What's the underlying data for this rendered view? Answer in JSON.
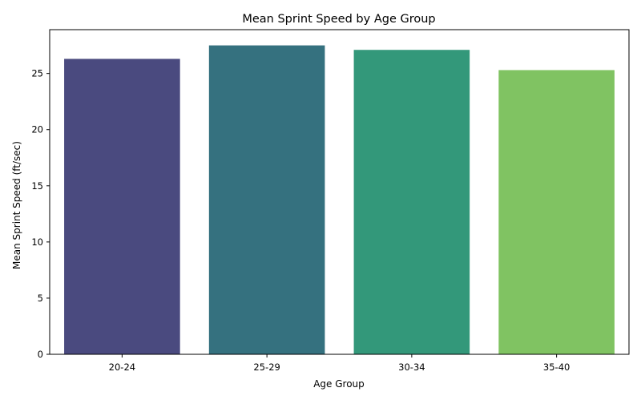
{
  "chart_data": {
    "type": "bar",
    "title": "Mean Sprint Speed by Age Group",
    "xlabel": "Age Group",
    "ylabel": "Mean Sprint Speed (ft/sec)",
    "categories": [
      "20-24",
      "25-29",
      "30-34",
      "35-40"
    ],
    "values": [
      26.3,
      27.5,
      27.1,
      25.3
    ],
    "colors": [
      "#4a4a7f",
      "#35717f",
      "#33987a",
      "#80c362"
    ],
    "ylim": [
      0,
      28.9
    ],
    "yticks": [
      0,
      5,
      10,
      15,
      20,
      25
    ],
    "grid": false,
    "legend": "none"
  }
}
